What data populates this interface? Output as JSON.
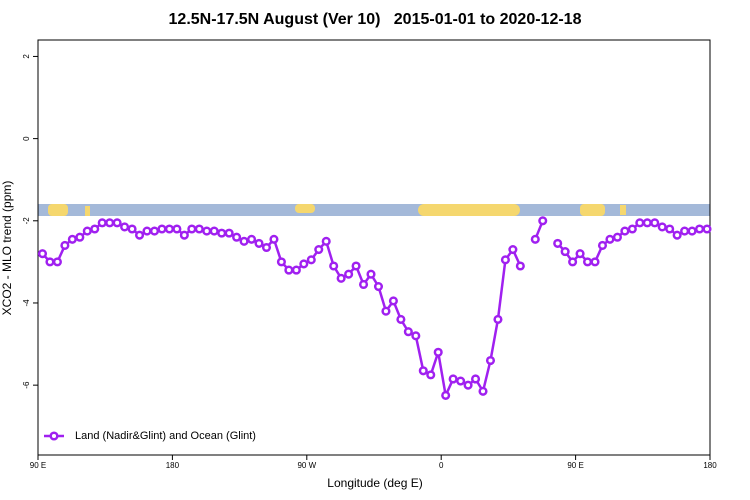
{
  "chart_data": {
    "type": "line",
    "title": "12.5N-17.5N August (Ver 10)   2015-01-01 to 2020-12-18",
    "x_label": "Longitude (deg E)",
    "y_label": "XCO2 - MLO trend (ppm)",
    "xlim": [
      90,
      540
    ],
    "xticks": [
      {
        "value": 90,
        "label": "90 E"
      },
      180,
      {
        "value": 270,
        "label": "90 W"
      },
      {
        "value": 360,
        "label": "0"
      },
      {
        "value": 450,
        "label": "90 E"
      },
      {
        "value": 540,
        "label": "180"
      }
    ],
    "ylim": [
      -7.7,
      2.4
    ],
    "yticks": [
      -6,
      -4,
      -2,
      0,
      2
    ],
    "legend": "bottom-left",
    "x": [
      93,
      98,
      103,
      108,
      113,
      118,
      123,
      128,
      133,
      138,
      143,
      148,
      153,
      158,
      163,
      168,
      173,
      178,
      183,
      188,
      193,
      198,
      203,
      208,
      213,
      218,
      223,
      228,
      233,
      238,
      243,
      248,
      253,
      258,
      263,
      268,
      273,
      278,
      283,
      288,
      293,
      298,
      303,
      308,
      313,
      318,
      323,
      328,
      333,
      338,
      343,
      348,
      353,
      358,
      363,
      368,
      373,
      378,
      383,
      388,
      393,
      398,
      403,
      408,
      413,
      418,
      423,
      428,
      433,
      438,
      443,
      448,
      453,
      458,
      463,
      468,
      473,
      478,
      483,
      488,
      493,
      498,
      503,
      508,
      513,
      518,
      523,
      528,
      533,
      538
    ],
    "series": [
      {
        "name": "Land (Nadir&Glint) and Ocean (Glint)",
        "color": "#a020f0",
        "values": [
          -2.8,
          -3.0,
          -3.0,
          -2.6,
          -2.45,
          -2.4,
          -2.25,
          -2.2,
          -2.05,
          -2.05,
          -2.05,
          -2.15,
          -2.2,
          -2.35,
          -2.25,
          -2.25,
          -2.2,
          -2.2,
          -2.2,
          -2.35,
          -2.2,
          -2.2,
          -2.25,
          -2.25,
          -2.3,
          -2.3,
          -2.4,
          -2.5,
          -2.45,
          -2.55,
          -2.65,
          -2.45,
          -3.0,
          -3.2,
          -3.2,
          -3.05,
          -2.95,
          -2.7,
          -2.5,
          -3.1,
          -3.4,
          -3.3,
          -3.1,
          -3.55,
          -3.3,
          -3.6,
          -4.2,
          -3.95,
          -4.4,
          -4.7,
          -4.8,
          -5.65,
          -5.75,
          -5.2,
          -6.25,
          -5.85,
          -5.9,
          -6.0,
          -5.85,
          -6.15,
          -5.4,
          -4.4,
          -2.95,
          -2.7,
          -3.1,
          null,
          -2.45,
          -2.0,
          null,
          -2.55,
          -2.75,
          -3.0,
          -2.8,
          -3.0,
          -3.0,
          -2.6,
          -2.45,
          -2.4,
          -2.25,
          -2.2,
          -2.05,
          -2.05,
          -2.05,
          -2.15,
          -2.2,
          -2.35,
          -2.25,
          -2.25,
          -2.2,
          -2.2
        ]
      }
    ]
  }
}
